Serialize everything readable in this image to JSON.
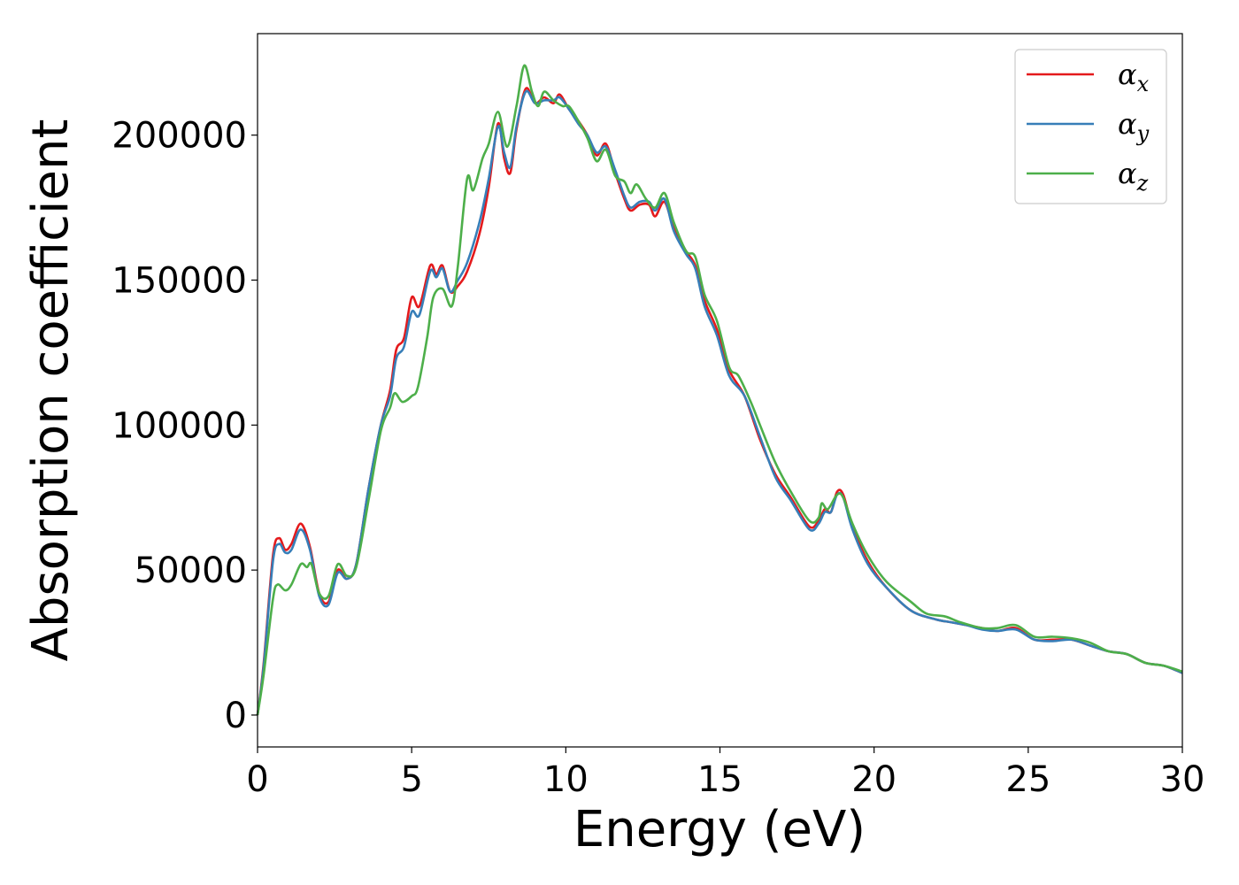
{
  "chart_data": {
    "type": "line",
    "xlabel": "Energy (eV)",
    "ylabel": "Absorption coefficient",
    "xlim": [
      0,
      30
    ],
    "ylim": [
      -11000,
      235000
    ],
    "xticks": [
      0,
      5,
      10,
      15,
      20,
      25,
      30
    ],
    "xtick_labels": [
      "0",
      "5",
      "10",
      "15",
      "20",
      "25",
      "30"
    ],
    "yticks": [
      0,
      50000,
      100000,
      150000,
      200000
    ],
    "ytick_labels": [
      "0",
      "50000",
      "100000",
      "150000",
      "200000"
    ],
    "grid": false,
    "legend_position": "top-right",
    "series": [
      {
        "name": "α",
        "subscript": "x",
        "color": "#e41a1c",
        "points": [
          [
            0,
            0
          ],
          [
            0.2,
            18000
          ],
          [
            0.5,
            55000
          ],
          [
            0.7,
            61000
          ],
          [
            0.9,
            57000
          ],
          [
            1.1,
            59000
          ],
          [
            1.4,
            66000
          ],
          [
            1.7,
            58000
          ],
          [
            2.0,
            42000
          ],
          [
            2.3,
            39000
          ],
          [
            2.6,
            50000
          ],
          [
            2.9,
            47000
          ],
          [
            3.2,
            52000
          ],
          [
            3.6,
            78000
          ],
          [
            4.0,
            100000
          ],
          [
            4.3,
            112000
          ],
          [
            4.5,
            126000
          ],
          [
            4.75,
            130000
          ],
          [
            5.0,
            144000
          ],
          [
            5.25,
            141000
          ],
          [
            5.6,
            155000
          ],
          [
            5.8,
            152000
          ],
          [
            6.0,
            155000
          ],
          [
            6.25,
            146000
          ],
          [
            6.5,
            148000
          ],
          [
            6.8,
            153000
          ],
          [
            7.2,
            166000
          ],
          [
            7.5,
            182000
          ],
          [
            7.8,
            204000
          ],
          [
            8.0,
            192000
          ],
          [
            8.2,
            187000
          ],
          [
            8.4,
            202000
          ],
          [
            8.7,
            216000
          ],
          [
            9.0,
            211000
          ],
          [
            9.3,
            213000
          ],
          [
            9.6,
            211000
          ],
          [
            9.8,
            214000
          ],
          [
            10.1,
            209000
          ],
          [
            10.4,
            205000
          ],
          [
            10.7,
            200000
          ],
          [
            11.0,
            193000
          ],
          [
            11.3,
            197000
          ],
          [
            11.6,
            187000
          ],
          [
            11.9,
            178000
          ],
          [
            12.1,
            174000
          ],
          [
            12.4,
            176000
          ],
          [
            12.7,
            176000
          ],
          [
            12.9,
            172000
          ],
          [
            13.2,
            177000
          ],
          [
            13.5,
            168000
          ],
          [
            13.9,
            160000
          ],
          [
            14.2,
            155000
          ],
          [
            14.5,
            143000
          ],
          [
            14.9,
            133000
          ],
          [
            15.3,
            119000
          ],
          [
            15.8,
            110000
          ],
          [
            16.3,
            95000
          ],
          [
            16.8,
            83000
          ],
          [
            17.3,
            75000
          ],
          [
            17.9,
            65000
          ],
          [
            18.2,
            67000
          ],
          [
            18.4,
            71000
          ],
          [
            18.6,
            70000
          ],
          [
            18.8,
            77000
          ],
          [
            19.0,
            76000
          ],
          [
            19.3,
            65000
          ],
          [
            19.8,
            53000
          ],
          [
            20.4,
            44000
          ],
          [
            21.2,
            36000
          ],
          [
            22.0,
            33000
          ],
          [
            22.5,
            32000
          ],
          [
            23.0,
            31000
          ],
          [
            23.5,
            30000
          ],
          [
            24.0,
            29000
          ],
          [
            24.6,
            30000
          ],
          [
            25.2,
            26000
          ],
          [
            25.8,
            26000
          ],
          [
            26.4,
            26000
          ],
          [
            27.0,
            24000
          ],
          [
            27.6,
            22000
          ],
          [
            28.2,
            21000
          ],
          [
            28.8,
            18000
          ],
          [
            29.4,
            17000
          ],
          [
            30.0,
            14500
          ]
        ]
      },
      {
        "name": "α",
        "subscript": "y",
        "color": "#377eb8",
        "points": [
          [
            0,
            0
          ],
          [
            0.2,
            17000
          ],
          [
            0.5,
            53000
          ],
          [
            0.7,
            59000
          ],
          [
            0.9,
            56000
          ],
          [
            1.1,
            57000
          ],
          [
            1.4,
            64000
          ],
          [
            1.7,
            57000
          ],
          [
            2.0,
            41000
          ],
          [
            2.3,
            38000
          ],
          [
            2.6,
            49000
          ],
          [
            2.9,
            47000
          ],
          [
            3.2,
            52000
          ],
          [
            3.6,
            78000
          ],
          [
            4.0,
            100000
          ],
          [
            4.3,
            110000
          ],
          [
            4.5,
            123000
          ],
          [
            4.75,
            127000
          ],
          [
            5.0,
            139000
          ],
          [
            5.25,
            138000
          ],
          [
            5.6,
            153000
          ],
          [
            5.8,
            151000
          ],
          [
            6.0,
            154000
          ],
          [
            6.25,
            146000
          ],
          [
            6.5,
            150000
          ],
          [
            6.8,
            156000
          ],
          [
            7.2,
            170000
          ],
          [
            7.5,
            185000
          ],
          [
            7.8,
            203000
          ],
          [
            8.0,
            194000
          ],
          [
            8.2,
            189000
          ],
          [
            8.4,
            203000
          ],
          [
            8.7,
            215000
          ],
          [
            9.0,
            211000
          ],
          [
            9.3,
            212000
          ],
          [
            9.6,
            212000
          ],
          [
            9.8,
            213000
          ],
          [
            10.1,
            209000
          ],
          [
            10.4,
            204000
          ],
          [
            10.7,
            200000
          ],
          [
            11.0,
            194000
          ],
          [
            11.3,
            196000
          ],
          [
            11.6,
            188000
          ],
          [
            11.9,
            179000
          ],
          [
            12.1,
            175000
          ],
          [
            12.4,
            177000
          ],
          [
            12.7,
            177000
          ],
          [
            12.9,
            174000
          ],
          [
            13.2,
            178000
          ],
          [
            13.5,
            167000
          ],
          [
            13.9,
            159000
          ],
          [
            14.2,
            154000
          ],
          [
            14.5,
            141000
          ],
          [
            14.9,
            131000
          ],
          [
            15.3,
            117000
          ],
          [
            15.8,
            110000
          ],
          [
            16.3,
            96000
          ],
          [
            16.8,
            82000
          ],
          [
            17.3,
            74000
          ],
          [
            17.9,
            64000
          ],
          [
            18.2,
            66000
          ],
          [
            18.4,
            70000
          ],
          [
            18.6,
            70000
          ],
          [
            18.8,
            76000
          ],
          [
            19.0,
            75000
          ],
          [
            19.3,
            64000
          ],
          [
            19.8,
            52000
          ],
          [
            20.4,
            44000
          ],
          [
            21.2,
            36000
          ],
          [
            22.0,
            33000
          ],
          [
            22.5,
            32000
          ],
          [
            23.0,
            31000
          ],
          [
            23.5,
            29500
          ],
          [
            24.0,
            29000
          ],
          [
            24.6,
            29500
          ],
          [
            25.2,
            26000
          ],
          [
            25.8,
            25500
          ],
          [
            26.4,
            26000
          ],
          [
            27.0,
            24000
          ],
          [
            27.6,
            22000
          ],
          [
            28.2,
            21000
          ],
          [
            28.8,
            18000
          ],
          [
            29.4,
            17000
          ],
          [
            30.0,
            14500
          ]
        ]
      },
      {
        "name": "α",
        "subscript": "z",
        "color": "#4daf4a",
        "points": [
          [
            0,
            0
          ],
          [
            0.2,
            14000
          ],
          [
            0.5,
            40000
          ],
          [
            0.65,
            45000
          ],
          [
            0.9,
            43000
          ],
          [
            1.1,
            45000
          ],
          [
            1.4,
            52000
          ],
          [
            1.6,
            51000
          ],
          [
            1.75,
            52000
          ],
          [
            2.0,
            42000
          ],
          [
            2.3,
            41000
          ],
          [
            2.6,
            52000
          ],
          [
            2.9,
            48000
          ],
          [
            3.2,
            51000
          ],
          [
            3.6,
            74000
          ],
          [
            4.0,
            98000
          ],
          [
            4.3,
            106000
          ],
          [
            4.45,
            111000
          ],
          [
            4.7,
            108000
          ],
          [
            5.0,
            110000
          ],
          [
            5.2,
            113000
          ],
          [
            5.5,
            130000
          ],
          [
            5.7,
            144000
          ],
          [
            6.0,
            147000
          ],
          [
            6.3,
            141000
          ],
          [
            6.5,
            155000
          ],
          [
            6.8,
            185000
          ],
          [
            7.0,
            181000
          ],
          [
            7.3,
            192000
          ],
          [
            7.5,
            197000
          ],
          [
            7.8,
            208000
          ],
          [
            8.1,
            196000
          ],
          [
            8.4,
            210000
          ],
          [
            8.65,
            224000
          ],
          [
            8.9,
            215000
          ],
          [
            9.1,
            210000
          ],
          [
            9.3,
            215000
          ],
          [
            9.6,
            212000
          ],
          [
            9.9,
            210000
          ],
          [
            10.1,
            210000
          ],
          [
            10.4,
            205000
          ],
          [
            10.7,
            199000
          ],
          [
            11.0,
            191000
          ],
          [
            11.3,
            195000
          ],
          [
            11.6,
            186000
          ],
          [
            11.9,
            184000
          ],
          [
            12.1,
            180000
          ],
          [
            12.3,
            183000
          ],
          [
            12.6,
            178000
          ],
          [
            12.9,
            175000
          ],
          [
            13.2,
            180000
          ],
          [
            13.5,
            170000
          ],
          [
            13.9,
            160000
          ],
          [
            14.2,
            158000
          ],
          [
            14.5,
            145000
          ],
          [
            14.9,
            136000
          ],
          [
            15.3,
            120000
          ],
          [
            15.6,
            117000
          ],
          [
            16.0,
            108000
          ],
          [
            16.3,
            100000
          ],
          [
            16.8,
            87000
          ],
          [
            17.3,
            77000
          ],
          [
            17.9,
            67000
          ],
          [
            18.2,
            68000
          ],
          [
            18.3,
            73000
          ],
          [
            18.5,
            71000
          ],
          [
            18.8,
            76000
          ],
          [
            19.0,
            75000
          ],
          [
            19.3,
            66000
          ],
          [
            19.8,
            55000
          ],
          [
            20.4,
            46000
          ],
          [
            21.2,
            39000
          ],
          [
            21.7,
            35000
          ],
          [
            22.3,
            34000
          ],
          [
            22.8,
            32000
          ],
          [
            23.5,
            30000
          ],
          [
            24.0,
            30000
          ],
          [
            24.6,
            31000
          ],
          [
            25.2,
            27000
          ],
          [
            25.8,
            27000
          ],
          [
            26.4,
            26500
          ],
          [
            27.0,
            25000
          ],
          [
            27.6,
            22000
          ],
          [
            28.2,
            21000
          ],
          [
            28.8,
            18000
          ],
          [
            29.4,
            17000
          ],
          [
            30.0,
            15000
          ]
        ]
      }
    ]
  }
}
